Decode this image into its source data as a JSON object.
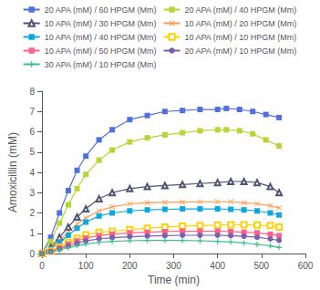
{
  "chart_data": {
    "type": "line",
    "xlabel": "Time (min)",
    "ylabel": "Amoxicillin (mM)",
    "xlim": [
      0,
      600
    ],
    "ylim": [
      0,
      8
    ],
    "xticks": [
      0,
      100,
      200,
      300,
      400,
      500,
      600
    ],
    "yticks": [
      0,
      1,
      2,
      3,
      4,
      5,
      6,
      7,
      8
    ],
    "grid": false,
    "legend": "top",
    "series": [
      {
        "name": "20 APA (mM) / 60 HPGM (Mm)",
        "marker": "square",
        "x": [
          0,
          20,
          40,
          60,
          80,
          100,
          130,
          160,
          200,
          240,
          280,
          320,
          360,
          400,
          420,
          450,
          480,
          510,
          540
        ],
        "values": [
          0,
          0.8,
          2.0,
          3.1,
          4.1,
          4.8,
          5.6,
          6.1,
          6.6,
          6.8,
          7.0,
          7.05,
          7.1,
          7.1,
          7.15,
          7.1,
          7.0,
          6.85,
          6.7
        ]
      },
      {
        "name": "20 APA (mM) / 40 HPGM (Mm)",
        "marker": "square",
        "x": [
          0,
          20,
          40,
          60,
          80,
          100,
          130,
          160,
          200,
          240,
          280,
          320,
          360,
          400,
          420,
          450,
          480,
          510,
          540
        ],
        "values": [
          0,
          0.6,
          1.5,
          2.4,
          3.2,
          3.9,
          4.6,
          5.1,
          5.5,
          5.7,
          5.85,
          5.95,
          6.05,
          6.1,
          6.1,
          6.05,
          5.9,
          5.6,
          5.3
        ]
      },
      {
        "name": "10 APA (mM) / 30 HPGM (Mm)",
        "marker": "triangle-open",
        "x": [
          0,
          20,
          40,
          60,
          80,
          100,
          130,
          160,
          200,
          240,
          280,
          320,
          360,
          400,
          430,
          460,
          490,
          520,
          540
        ],
        "values": [
          0,
          0.3,
          0.8,
          1.3,
          1.8,
          2.2,
          2.7,
          3.0,
          3.2,
          3.3,
          3.35,
          3.4,
          3.45,
          3.5,
          3.55,
          3.55,
          3.5,
          3.3,
          3.0
        ]
      },
      {
        "name": "10 APA (mM) / 20 HPGM (Mm)",
        "marker": "x",
        "x": [
          0,
          20,
          40,
          60,
          80,
          100,
          130,
          160,
          200,
          240,
          280,
          320,
          360,
          400,
          430,
          460,
          490,
          520,
          540
        ],
        "values": [
          0,
          0.25,
          0.65,
          1.05,
          1.45,
          1.75,
          2.1,
          2.3,
          2.45,
          2.5,
          2.52,
          2.53,
          2.54,
          2.55,
          2.55,
          2.5,
          2.45,
          2.35,
          2.25
        ]
      },
      {
        "name": "10 APA (mM) / 40 HPGM (Mm)",
        "marker": "square",
        "x": [
          0,
          20,
          40,
          60,
          80,
          100,
          130,
          160,
          200,
          240,
          280,
          320,
          360,
          400,
          430,
          460,
          490,
          520,
          540
        ],
        "values": [
          0,
          0.22,
          0.55,
          0.9,
          1.25,
          1.55,
          1.85,
          2.0,
          2.1,
          2.15,
          2.18,
          2.2,
          2.2,
          2.2,
          2.18,
          2.15,
          2.1,
          2.0,
          1.9
        ]
      },
      {
        "name": "10 APA (mM) / 10 HPGM (Mm)",
        "marker": "square-open",
        "x": [
          0,
          20,
          40,
          60,
          80,
          100,
          130,
          160,
          200,
          240,
          280,
          320,
          360,
          400,
          430,
          460,
          490,
          520,
          540
        ],
        "values": [
          0,
          0.12,
          0.32,
          0.55,
          0.75,
          0.92,
          1.05,
          1.1,
          1.18,
          1.25,
          1.3,
          1.35,
          1.38,
          1.4,
          1.42,
          1.42,
          1.4,
          1.38,
          1.3
        ]
      },
      {
        "name": "10 APA (mM) / 50 HPGM (Mm)",
        "marker": "square",
        "x": [
          0,
          20,
          40,
          60,
          80,
          100,
          130,
          160,
          200,
          240,
          280,
          320,
          360,
          400,
          430,
          460,
          490,
          520,
          540
        ],
        "values": [
          0,
          0.1,
          0.27,
          0.46,
          0.62,
          0.76,
          0.88,
          0.95,
          1.02,
          1.05,
          1.08,
          1.1,
          1.1,
          1.1,
          1.08,
          1.05,
          1.02,
          0.95,
          0.88
        ]
      },
      {
        "name": "20 APA (mM) / 10 HPGM (Mm)",
        "marker": "circle",
        "x": [
          0,
          20,
          40,
          60,
          80,
          100,
          130,
          160,
          200,
          240,
          280,
          320,
          360,
          400,
          430,
          460,
          490,
          520,
          540
        ],
        "values": [
          0,
          0.09,
          0.22,
          0.37,
          0.5,
          0.62,
          0.72,
          0.78,
          0.83,
          0.86,
          0.88,
          0.9,
          0.9,
          0.9,
          0.88,
          0.85,
          0.8,
          0.72,
          0.65
        ]
      },
      {
        "name": "30 APA (mM) / 10 HPGM (Mm)",
        "marker": "plus",
        "x": [
          0,
          20,
          40,
          60,
          80,
          100,
          130,
          160,
          200,
          240,
          280,
          320,
          360,
          400,
          430,
          460,
          490,
          520,
          540
        ],
        "values": [
          0,
          0.07,
          0.17,
          0.28,
          0.38,
          0.47,
          0.55,
          0.6,
          0.63,
          0.65,
          0.65,
          0.65,
          0.63,
          0.6,
          0.57,
          0.52,
          0.45,
          0.38,
          0.3
        ]
      }
    ]
  }
}
